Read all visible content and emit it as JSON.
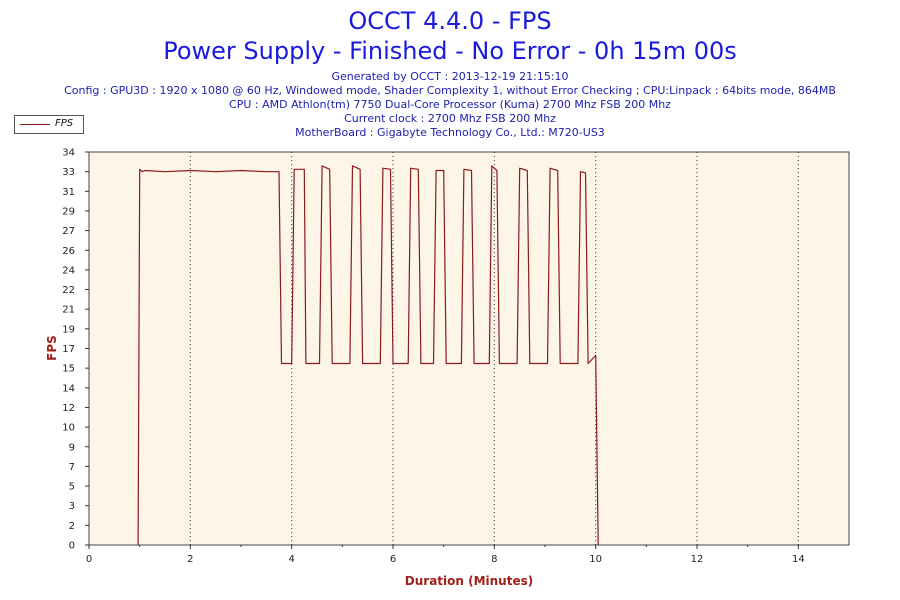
{
  "header": {
    "title": "OCCT 4.4.0 - FPS",
    "subtitle": "Power Supply - Finished - No Error - 0h 15m 00s",
    "info_lines": [
      "Generated by OCCT : 2013-12-19 21:15:10",
      "Config : GPU3D : 1920 x 1080 @ 60 Hz, Windowed mode, Shader Complexity 1, without Error Checking ; CPU:Linpack : 64bits mode, 864MB",
      "CPU : AMD Athlon(tm) 7750 Dual-Core Processor (Kuma) 2700 Mhz FSB 200 Mhz",
      "Current clock : 2700 Mhz FSB 200 Mhz",
      "MotherBoard : Gigabyte Technology Co., Ltd.: M720-US3"
    ]
  },
  "legend": {
    "label": "FPS"
  },
  "colors": {
    "series": "#8b1a1a",
    "plot_bg": "#fdf6e8",
    "title": "#1a1adc",
    "axis_title": "#a0201a"
  },
  "chart_data": {
    "type": "line",
    "xlabel": "Duration (Minutes)",
    "ylabel": "FPS",
    "xlim": [
      0,
      15
    ],
    "ylim": [
      0,
      34
    ],
    "xticks": [
      "0",
      "2",
      "4",
      "6",
      "8",
      "10",
      "12",
      "14"
    ],
    "yticks": [
      "0",
      "2",
      "3",
      "5",
      "7",
      "9",
      "10",
      "12",
      "14",
      "15",
      "17",
      "19",
      "21",
      "22",
      "24",
      "26",
      "27",
      "29",
      "31",
      "33",
      "34"
    ],
    "grid": true,
    "legend_position": "top-left",
    "series": [
      {
        "name": "FPS",
        "x": [
          0.97,
          1.0,
          1.05,
          1.1,
          1.5,
          2.0,
          2.5,
          3.0,
          3.5,
          3.75,
          3.8,
          3.85,
          4.0,
          4.05,
          4.1,
          4.25,
          4.28,
          4.35,
          4.55,
          4.6,
          4.75,
          4.8,
          4.85,
          5.15,
          5.2,
          5.35,
          5.4,
          5.45,
          5.75,
          5.8,
          5.95,
          6.0,
          6.05,
          6.3,
          6.35,
          6.5,
          6.55,
          6.6,
          6.8,
          6.85,
          7.0,
          7.05,
          7.1,
          7.35,
          7.4,
          7.55,
          7.6,
          7.65,
          7.9,
          7.95,
          8.05,
          8.1,
          8.15,
          8.45,
          8.5,
          8.65,
          8.7,
          8.75,
          9.05,
          9.1,
          9.25,
          9.3,
          9.35,
          9.65,
          9.7,
          9.8,
          9.85,
          10.0,
          10.05
        ],
        "y": [
          0,
          32.5,
          32.3,
          32.4,
          32.3,
          32.4,
          32.3,
          32.4,
          32.3,
          32.3,
          15.7,
          15.7,
          15.7,
          32.5,
          32.5,
          32.5,
          15.7,
          15.7,
          15.7,
          32.8,
          32.5,
          15.7,
          15.7,
          15.7,
          32.8,
          32.5,
          15.7,
          15.7,
          15.7,
          32.6,
          32.5,
          15.7,
          15.7,
          15.7,
          32.6,
          32.5,
          15.7,
          15.7,
          15.7,
          32.4,
          32.4,
          15.7,
          15.7,
          15.7,
          32.5,
          32.4,
          15.7,
          15.7,
          15.7,
          32.8,
          32.4,
          15.7,
          15.7,
          15.7,
          32.6,
          32.4,
          15.7,
          15.7,
          15.7,
          32.6,
          32.4,
          15.7,
          15.7,
          15.7,
          32.3,
          32.2,
          15.7,
          16.4,
          0
        ]
      }
    ]
  }
}
